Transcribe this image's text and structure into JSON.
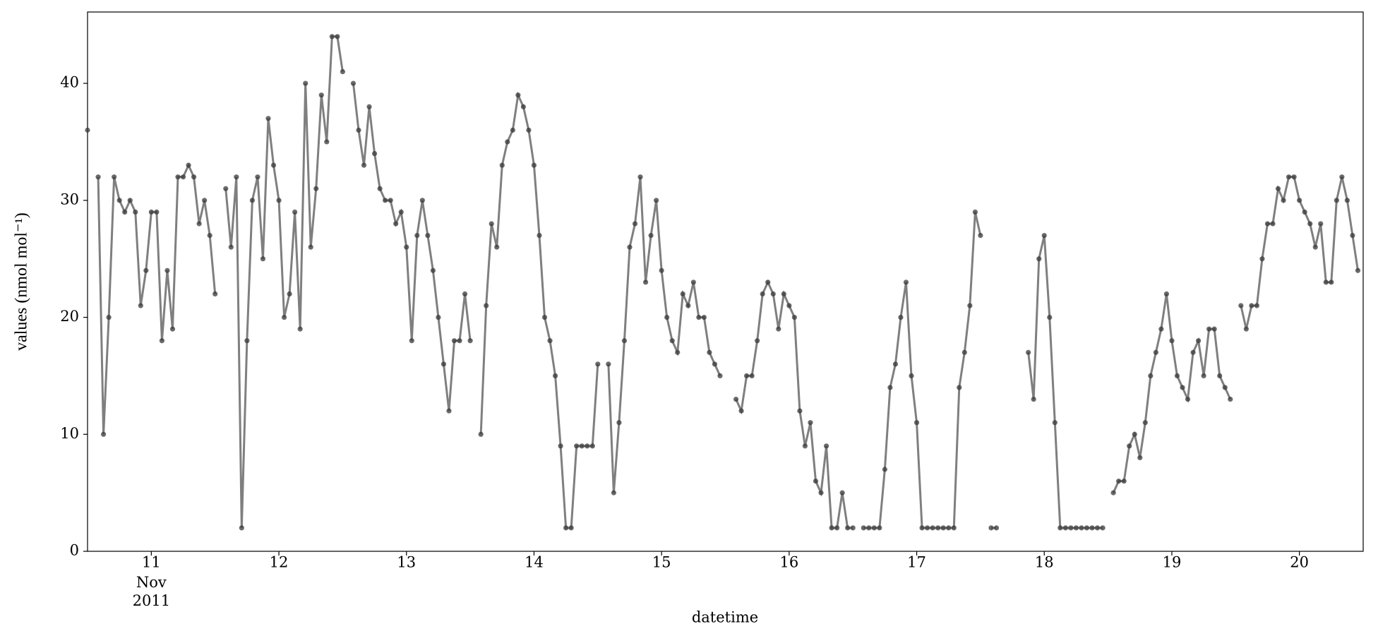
{
  "chart_data": {
    "type": "line",
    "color": "#7f7f7f",
    "marker_color": "#3a3a3a",
    "x_label": "datetime",
    "y_label": "values (nmol mol⁻¹)",
    "x_tick_date": "Nov\n2011",
    "xlim": [
      "2011-11-10T12:00",
      "2011-11-20T12:00"
    ],
    "xticks": [
      {
        "value": "2011-11-11T00:00",
        "label": "11"
      },
      {
        "value": "2011-11-12T00:00",
        "label": "12"
      },
      {
        "value": "2011-11-13T00:00",
        "label": "13"
      },
      {
        "value": "2011-11-14T00:00",
        "label": "14"
      },
      {
        "value": "2011-11-15T00:00",
        "label": "15"
      },
      {
        "value": "2011-11-16T00:00",
        "label": "16"
      },
      {
        "value": "2011-11-17T00:00",
        "label": "17"
      },
      {
        "value": "2011-11-18T00:00",
        "label": "18"
      },
      {
        "value": "2011-11-19T00:00",
        "label": "19"
      },
      {
        "value": "2011-11-20T00:00",
        "label": "20"
      }
    ],
    "ylim": [
      0,
      46.1
    ],
    "yticks": [
      0,
      10,
      20,
      30,
      40
    ],
    "x": [
      "2011-11-10T12:00",
      "2011-11-10T13:00",
      "2011-11-10T14:00",
      "2011-11-10T15:00",
      "2011-11-10T16:00",
      "2011-11-10T17:00",
      "2011-11-10T18:00",
      "2011-11-10T19:00",
      "2011-11-10T20:00",
      "2011-11-10T21:00",
      "2011-11-10T22:00",
      "2011-11-10T23:00",
      "2011-11-11T00:00",
      "2011-11-11T01:00",
      "2011-11-11T02:00",
      "2011-11-11T03:00",
      "2011-11-11T04:00",
      "2011-11-11T05:00",
      "2011-11-11T06:00",
      "2011-11-11T07:00",
      "2011-11-11T08:00",
      "2011-11-11T09:00",
      "2011-11-11T10:00",
      "2011-11-11T11:00",
      "2011-11-11T12:00",
      "2011-11-11T13:00",
      "2011-11-11T14:00",
      "2011-11-11T15:00",
      "2011-11-11T16:00",
      "2011-11-11T17:00",
      "2011-11-11T18:00",
      "2011-11-11T19:00",
      "2011-11-11T20:00",
      "2011-11-11T21:00",
      "2011-11-11T22:00",
      "2011-11-11T23:00",
      "2011-11-12T00:00",
      "2011-11-12T01:00",
      "2011-11-12T02:00",
      "2011-11-12T03:00",
      "2011-11-12T04:00",
      "2011-11-12T05:00",
      "2011-11-12T06:00",
      "2011-11-12T07:00",
      "2011-11-12T08:00",
      "2011-11-12T09:00",
      "2011-11-12T10:00",
      "2011-11-12T11:00",
      "2011-11-12T12:00",
      "2011-11-12T13:00",
      "2011-11-12T14:00",
      "2011-11-12T15:00",
      "2011-11-12T16:00",
      "2011-11-12T17:00",
      "2011-11-12T18:00",
      "2011-11-12T19:00",
      "2011-11-12T20:00",
      "2011-11-12T21:00",
      "2011-11-12T22:00",
      "2011-11-12T23:00",
      "2011-11-13T00:00",
      "2011-11-13T01:00",
      "2011-11-13T02:00",
      "2011-11-13T03:00",
      "2011-11-13T04:00",
      "2011-11-13T05:00",
      "2011-11-13T06:00",
      "2011-11-13T07:00",
      "2011-11-13T08:00",
      "2011-11-13T09:00",
      "2011-11-13T10:00",
      "2011-11-13T11:00",
      "2011-11-13T12:00",
      "2011-11-13T13:00",
      "2011-11-13T14:00",
      "2011-11-13T15:00",
      "2011-11-13T16:00",
      "2011-11-13T17:00",
      "2011-11-13T18:00",
      "2011-11-13T19:00",
      "2011-11-13T20:00",
      "2011-11-13T21:00",
      "2011-11-13T22:00",
      "2011-11-13T23:00",
      "2011-11-14T00:00",
      "2011-11-14T01:00",
      "2011-11-14T02:00",
      "2011-11-14T03:00",
      "2011-11-14T04:00",
      "2011-11-14T05:00",
      "2011-11-14T06:00",
      "2011-11-14T07:00",
      "2011-11-14T08:00",
      "2011-11-14T09:00",
      "2011-11-14T10:00",
      "2011-11-14T11:00",
      "2011-11-14T12:00",
      "2011-11-14T13:00",
      "2011-11-14T14:00",
      "2011-11-14T15:00",
      "2011-11-14T16:00",
      "2011-11-14T17:00",
      "2011-11-14T18:00",
      "2011-11-14T19:00",
      "2011-11-14T20:00",
      "2011-11-14T21:00",
      "2011-11-14T22:00",
      "2011-11-14T23:00",
      "2011-11-15T00:00",
      "2011-11-15T01:00",
      "2011-11-15T02:00",
      "2011-11-15T03:00",
      "2011-11-15T04:00",
      "2011-11-15T05:00",
      "2011-11-15T06:00",
      "2011-11-15T07:00",
      "2011-11-15T08:00",
      "2011-11-15T09:00",
      "2011-11-15T10:00",
      "2011-11-15T11:00",
      "2011-11-15T12:00",
      "2011-11-15T13:00",
      "2011-11-15T14:00",
      "2011-11-15T15:00",
      "2011-11-15T16:00",
      "2011-11-15T17:00",
      "2011-11-15T18:00",
      "2011-11-15T19:00",
      "2011-11-15T20:00",
      "2011-11-15T21:00",
      "2011-11-15T22:00",
      "2011-11-15T23:00",
      "2011-11-16T00:00",
      "2011-11-16T01:00",
      "2011-11-16T02:00",
      "2011-11-16T03:00",
      "2011-11-16T04:00",
      "2011-11-16T05:00",
      "2011-11-16T06:00",
      "2011-11-16T07:00",
      "2011-11-16T08:00",
      "2011-11-16T09:00",
      "2011-11-16T10:00",
      "2011-11-16T11:00",
      "2011-11-16T12:00",
      "2011-11-16T13:00",
      "2011-11-16T14:00",
      "2011-11-16T15:00",
      "2011-11-16T16:00",
      "2011-11-16T17:00",
      "2011-11-16T18:00",
      "2011-11-16T19:00",
      "2011-11-16T20:00",
      "2011-11-16T21:00",
      "2011-11-16T22:00",
      "2011-11-16T23:00",
      "2011-11-17T00:00",
      "2011-11-17T01:00",
      "2011-11-17T02:00",
      "2011-11-17T03:00",
      "2011-11-17T04:00",
      "2011-11-17T05:00",
      "2011-11-17T06:00",
      "2011-11-17T07:00",
      "2011-11-17T08:00",
      "2011-11-17T09:00",
      "2011-11-17T10:00",
      "2011-11-17T11:00",
      "2011-11-17T12:00",
      "2011-11-17T13:00",
      "2011-11-17T14:00",
      "2011-11-17T15:00",
      "2011-11-17T16:00",
      "2011-11-17T17:00",
      "2011-11-17T18:00",
      "2011-11-17T19:00",
      "2011-11-17T20:00",
      "2011-11-17T21:00",
      "2011-11-17T22:00",
      "2011-11-17T23:00",
      "2011-11-18T00:00",
      "2011-11-18T01:00",
      "2011-11-18T02:00",
      "2011-11-18T03:00",
      "2011-11-18T04:00",
      "2011-11-18T05:00",
      "2011-11-18T06:00",
      "2011-11-18T07:00",
      "2011-11-18T08:00",
      "2011-11-18T09:00",
      "2011-11-18T10:00",
      "2011-11-18T11:00",
      "2011-11-18T12:00",
      "2011-11-18T13:00",
      "2011-11-18T14:00",
      "2011-11-18T15:00",
      "2011-11-18T16:00",
      "2011-11-18T17:00",
      "2011-11-18T18:00",
      "2011-11-18T19:00",
      "2011-11-18T20:00",
      "2011-11-18T21:00",
      "2011-11-18T22:00",
      "2011-11-18T23:00",
      "2011-11-19T00:00",
      "2011-11-19T01:00",
      "2011-11-19T02:00",
      "2011-11-19T03:00",
      "2011-11-19T04:00",
      "2011-11-19T05:00",
      "2011-11-19T06:00",
      "2011-11-19T07:00",
      "2011-11-19T08:00",
      "2011-11-19T09:00",
      "2011-11-19T10:00",
      "2011-11-19T11:00",
      "2011-11-19T12:00",
      "2011-11-19T13:00",
      "2011-11-19T14:00",
      "2011-11-19T15:00",
      "2011-11-19T16:00",
      "2011-11-19T17:00",
      "2011-11-19T18:00",
      "2011-11-19T19:00",
      "2011-11-19T20:00",
      "2011-11-19T21:00",
      "2011-11-19T22:00",
      "2011-11-19T23:00",
      "2011-11-20T00:00",
      "2011-11-20T01:00",
      "2011-11-20T02:00",
      "2011-11-20T03:00",
      "2011-11-20T04:00",
      "2011-11-20T05:00",
      "2011-11-20T06:00",
      "2011-11-20T07:00",
      "2011-11-20T08:00",
      "2011-11-20T09:00",
      "2011-11-20T10:00",
      "2011-11-20T11:00"
    ],
    "values": [
      36,
      null,
      32,
      10,
      20,
      32,
      30,
      29,
      30,
      29,
      21,
      24,
      29,
      29,
      18,
      24,
      19,
      32,
      32,
      33,
      32,
      28,
      30,
      27,
      22,
      null,
      31,
      26,
      32,
      2,
      18,
      30,
      32,
      25,
      37,
      33,
      30,
      20,
      22,
      29,
      19,
      40,
      26,
      31,
      39,
      35,
      44,
      44,
      41,
      null,
      40,
      36,
      33,
      38,
      34,
      31,
      30,
      30,
      28,
      29,
      26,
      18,
      27,
      30,
      27,
      24,
      20,
      16,
      12,
      18,
      18,
      22,
      18,
      null,
      10,
      21,
      28,
      26,
      33,
      35,
      36,
      39,
      38,
      36,
      33,
      27,
      20,
      18,
      15,
      9,
      2,
      2,
      9,
      9,
      9,
      9,
      16,
      null,
      16,
      5,
      11,
      18,
      26,
      28,
      32,
      23,
      27,
      30,
      24,
      20,
      18,
      17,
      22,
      21,
      23,
      20,
      20,
      17,
      16,
      15,
      null,
      null,
      13,
      12,
      15,
      15,
      18,
      22,
      23,
      22,
      19,
      22,
      21,
      20,
      12,
      9,
      11,
      6,
      5,
      9,
      2,
      2,
      5,
      2,
      2,
      null,
      2,
      2,
      2,
      2,
      7,
      14,
      16,
      20,
      23,
      15,
      11,
      2,
      2,
      2,
      2,
      2,
      2,
      2,
      14,
      17,
      21,
      29,
      27,
      null,
      2,
      2,
      null,
      null,
      null,
      null,
      null,
      17,
      13,
      25,
      27,
      20,
      11,
      2,
      2,
      2,
      2,
      2,
      2,
      2,
      2,
      2,
      null,
      5,
      6,
      6,
      9,
      10,
      8,
      11,
      15,
      17,
      19,
      22,
      18,
      15,
      14,
      13,
      17,
      18,
      15,
      19,
      19,
      15,
      14,
      13,
      null,
      21,
      19,
      21,
      21,
      25,
      28,
      28,
      31,
      30,
      32,
      32,
      30,
      29,
      28,
      26,
      28,
      23,
      23,
      30,
      32,
      30,
      27,
      24
    ]
  }
}
